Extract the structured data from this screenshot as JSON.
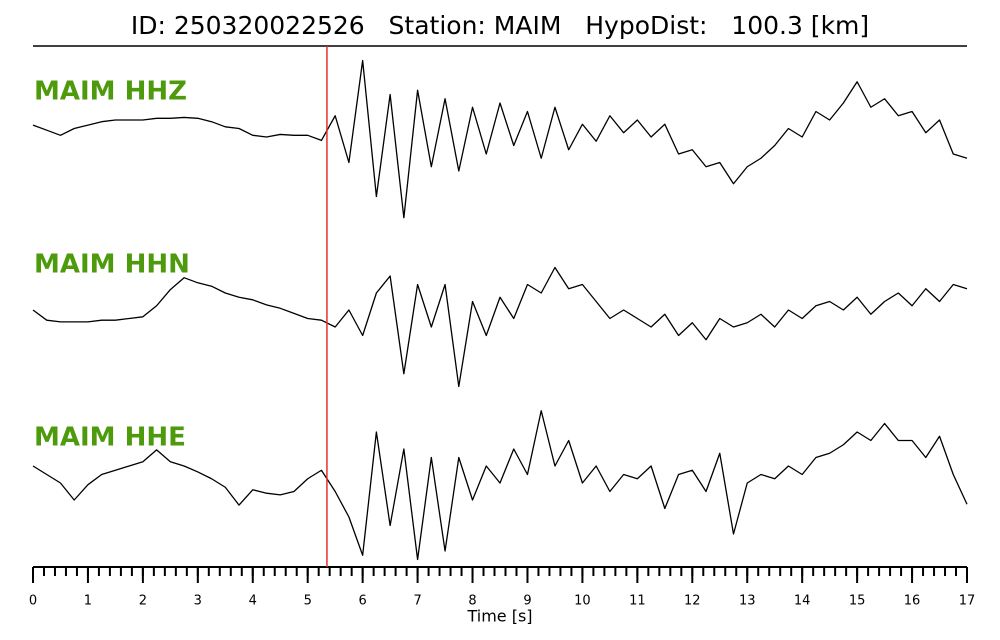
{
  "chart_data": {
    "type": "seismogram",
    "title": "ID: 250320022526   Station: MAIM   HypoDist:   100.3 [km]",
    "xlabel": "Time [s]",
    "xlim": [
      0,
      17
    ],
    "xticks": [
      0,
      1,
      2,
      3,
      4,
      5,
      6,
      7,
      8,
      9,
      10,
      11,
      12,
      13,
      14,
      15,
      16,
      17
    ],
    "minor_xtick_step": 0.2,
    "ylim": [
      -1,
      1
    ],
    "pick_time": 5.35,
    "pick_color": "#e8302a",
    "label_color": "#4d9a0c",
    "x": [
      0,
      0.25,
      0.5,
      0.75,
      1,
      1.25,
      1.5,
      1.75,
      2,
      2.25,
      2.5,
      2.75,
      3,
      3.25,
      3.5,
      3.75,
      4,
      4.25,
      4.5,
      4.75,
      5,
      5.25,
      5.5,
      5.75,
      6,
      6.25,
      6.5,
      6.75,
      7,
      7.25,
      7.5,
      7.75,
      8,
      8.25,
      8.5,
      8.75,
      9,
      9.25,
      9.5,
      9.75,
      10,
      10.25,
      10.5,
      10.75,
      11,
      11.25,
      11.5,
      11.75,
      12,
      12.25,
      12.5,
      12.75,
      13,
      13.25,
      13.5,
      13.75,
      14,
      14.25,
      14.5,
      14.75,
      15,
      15.25,
      15.5,
      15.75,
      16,
      16.25,
      16.5,
      16.75,
      17
    ],
    "series": [
      {
        "name": "MAIM HHZ",
        "color": "#000000",
        "values": [
          0.14,
          0.08,
          0.02,
          0.1,
          0.14,
          0.18,
          0.2,
          0.2,
          0.2,
          0.22,
          0.22,
          0.23,
          0.22,
          0.18,
          0.12,
          0.1,
          0.02,
          0.0,
          0.03,
          0.02,
          0.02,
          -0.04,
          0.25,
          -0.3,
          0.9,
          -0.7,
          0.5,
          -0.95,
          0.55,
          -0.35,
          0.45,
          -0.4,
          0.35,
          -0.2,
          0.4,
          -0.1,
          0.3,
          -0.25,
          0.35,
          -0.15,
          0.15,
          -0.05,
          0.25,
          0.05,
          0.2,
          0.0,
          0.15,
          -0.2,
          -0.15,
          -0.35,
          -0.3,
          -0.55,
          -0.35,
          -0.25,
          -0.1,
          0.1,
          0.0,
          0.3,
          0.2,
          0.4,
          0.65,
          0.35,
          0.45,
          0.25,
          0.3,
          0.05,
          0.2,
          -0.2,
          -0.25
        ]
      },
      {
        "name": "MAIM HHN",
        "color": "#000000",
        "values": [
          0.0,
          -0.12,
          -0.14,
          -0.14,
          -0.14,
          -0.12,
          -0.12,
          -0.1,
          -0.08,
          0.05,
          0.24,
          0.38,
          0.32,
          0.28,
          0.2,
          0.15,
          0.12,
          0.06,
          0.02,
          -0.04,
          -0.1,
          -0.12,
          -0.2,
          0.0,
          -0.3,
          0.2,
          0.4,
          -0.75,
          0.3,
          -0.2,
          0.3,
          -0.9,
          0.1,
          -0.3,
          0.15,
          -0.1,
          0.3,
          0.2,
          0.5,
          0.25,
          0.3,
          0.1,
          -0.1,
          0.0,
          -0.1,
          -0.2,
          -0.05,
          -0.3,
          -0.15,
          -0.35,
          -0.1,
          -0.2,
          -0.15,
          -0.05,
          -0.2,
          0.0,
          -0.1,
          0.05,
          0.1,
          0.0,
          0.15,
          -0.05,
          0.1,
          0.2,
          0.05,
          0.25,
          0.1,
          0.3,
          0.25
        ]
      },
      {
        "name": "MAIM HHE",
        "color": "#000000",
        "values": [
          0.2,
          0.1,
          0.0,
          -0.2,
          -0.02,
          0.1,
          0.15,
          0.2,
          0.25,
          0.39,
          0.25,
          0.2,
          0.13,
          0.05,
          -0.05,
          -0.26,
          -0.08,
          -0.12,
          -0.14,
          -0.1,
          0.05,
          0.15,
          -0.1,
          -0.4,
          -0.85,
          0.6,
          -0.5,
          0.4,
          -0.9,
          0.3,
          -0.8,
          0.3,
          -0.2,
          0.2,
          0.0,
          0.4,
          0.1,
          0.85,
          0.2,
          0.5,
          0.0,
          0.2,
          -0.1,
          0.1,
          0.05,
          0.2,
          -0.3,
          0.1,
          0.15,
          -0.1,
          0.35,
          -0.6,
          0.0,
          0.1,
          0.05,
          0.2,
          0.1,
          0.3,
          0.35,
          0.45,
          0.6,
          0.5,
          0.7,
          0.5,
          0.5,
          0.3,
          0.55,
          0.1,
          -0.25
        ]
      }
    ]
  }
}
